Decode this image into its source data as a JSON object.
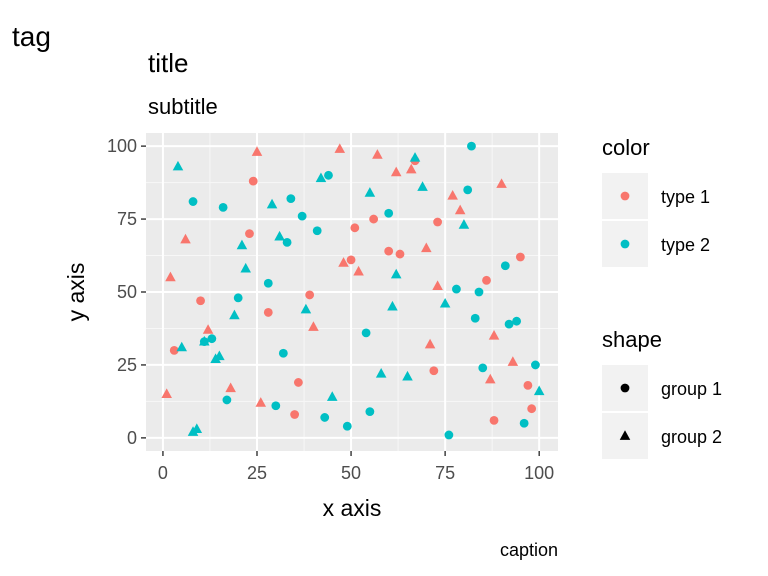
{
  "chart_data": {
    "type": "scatter",
    "tag": "tag",
    "title": "title",
    "subtitle": "subtitle",
    "caption": "caption",
    "xlabel": "x axis",
    "ylabel": "y axis",
    "xlim": [
      -4.5,
      105
    ],
    "ylim": [
      -4.5,
      104.5
    ],
    "xticks": [
      0,
      25,
      50,
      75,
      100
    ],
    "yticks": [
      0,
      25,
      50,
      75,
      100
    ],
    "grid": true,
    "legend_position": "right",
    "legends": [
      {
        "title": "color",
        "entries": [
          {
            "label": "type 1",
            "color": "#F8766D",
            "symbol": "circle"
          },
          {
            "label": "type 2",
            "color": "#00BFC4",
            "symbol": "circle"
          }
        ]
      },
      {
        "title": "shape",
        "entries": [
          {
            "label": "group 1",
            "color": "#000000",
            "symbol": "circle"
          },
          {
            "label": "group 2",
            "color": "#000000",
            "symbol": "triangle"
          }
        ]
      }
    ],
    "series": [
      {
        "color_group": "type 1",
        "shape_group": "group 1",
        "color": "#F8766D",
        "symbol": "circle",
        "points": [
          [
            3,
            30
          ],
          [
            10,
            47
          ],
          [
            24,
            88
          ],
          [
            23,
            70
          ],
          [
            28,
            43
          ],
          [
            35,
            8
          ],
          [
            36,
            19
          ],
          [
            39,
            49
          ],
          [
            50,
            61
          ],
          [
            51,
            72
          ],
          [
            56,
            75
          ],
          [
            60,
            64
          ],
          [
            63,
            63
          ],
          [
            67,
            95
          ],
          [
            72,
            23
          ],
          [
            73,
            74
          ],
          [
            86,
            54
          ],
          [
            88,
            6
          ],
          [
            95,
            62
          ],
          [
            97,
            18
          ],
          [
            98,
            10
          ]
        ]
      },
      {
        "color_group": "type 1",
        "shape_group": "group 2",
        "color": "#F8766D",
        "symbol": "triangle",
        "points": [
          [
            1,
            15
          ],
          [
            2,
            55
          ],
          [
            6,
            68
          ],
          [
            12,
            37
          ],
          [
            18,
            17
          ],
          [
            25,
            98
          ],
          [
            26,
            12
          ],
          [
            40,
            38
          ],
          [
            47,
            99
          ],
          [
            48,
            60
          ],
          [
            52,
            57
          ],
          [
            57,
            97
          ],
          [
            62,
            91
          ],
          [
            66,
            92
          ],
          [
            70,
            65
          ],
          [
            71,
            32
          ],
          [
            73,
            52
          ],
          [
            77,
            83
          ],
          [
            79,
            78
          ],
          [
            87,
            20
          ],
          [
            88,
            35
          ],
          [
            90,
            87
          ],
          [
            93,
            26
          ]
        ]
      },
      {
        "color_group": "type 2",
        "shape_group": "group 1",
        "color": "#00BFC4",
        "symbol": "circle",
        "points": [
          [
            8,
            81
          ],
          [
            11,
            33
          ],
          [
            13,
            34
          ],
          [
            16,
            79
          ],
          [
            17,
            13
          ],
          [
            20,
            48
          ],
          [
            28,
            53
          ],
          [
            30,
            11
          ],
          [
            32,
            29
          ],
          [
            33,
            67
          ],
          [
            34,
            82
          ],
          [
            37,
            76
          ],
          [
            41,
            71
          ],
          [
            43,
            7
          ],
          [
            44,
            90
          ],
          [
            49,
            4
          ],
          [
            54,
            36
          ],
          [
            55,
            9
          ],
          [
            60,
            77
          ],
          [
            76,
            1
          ],
          [
            78,
            51
          ],
          [
            81,
            85
          ],
          [
            82,
            100
          ],
          [
            83,
            41
          ],
          [
            84,
            50
          ],
          [
            85,
            24
          ],
          [
            91,
            59
          ],
          [
            92,
            39
          ],
          [
            94,
            40
          ],
          [
            96,
            5
          ],
          [
            99,
            25
          ]
        ]
      },
      {
        "color_group": "type 2",
        "shape_group": "group 2",
        "color": "#00BFC4",
        "symbol": "triangle",
        "points": [
          [
            4,
            93
          ],
          [
            5,
            31
          ],
          [
            8,
            2
          ],
          [
            9,
            3
          ],
          [
            11,
            33
          ],
          [
            14,
            27
          ],
          [
            15,
            28
          ],
          [
            19,
            42
          ],
          [
            21,
            66
          ],
          [
            22,
            58
          ],
          [
            29,
            80
          ],
          [
            31,
            69
          ],
          [
            38,
            44
          ],
          [
            42,
            89
          ],
          [
            45,
            14
          ],
          [
            55,
            84
          ],
          [
            58,
            22
          ],
          [
            61,
            45
          ],
          [
            62,
            56
          ],
          [
            65,
            21
          ],
          [
            67,
            96
          ],
          [
            69,
            86
          ],
          [
            75,
            46
          ],
          [
            80,
            73
          ],
          [
            100,
            16
          ]
        ]
      }
    ]
  }
}
